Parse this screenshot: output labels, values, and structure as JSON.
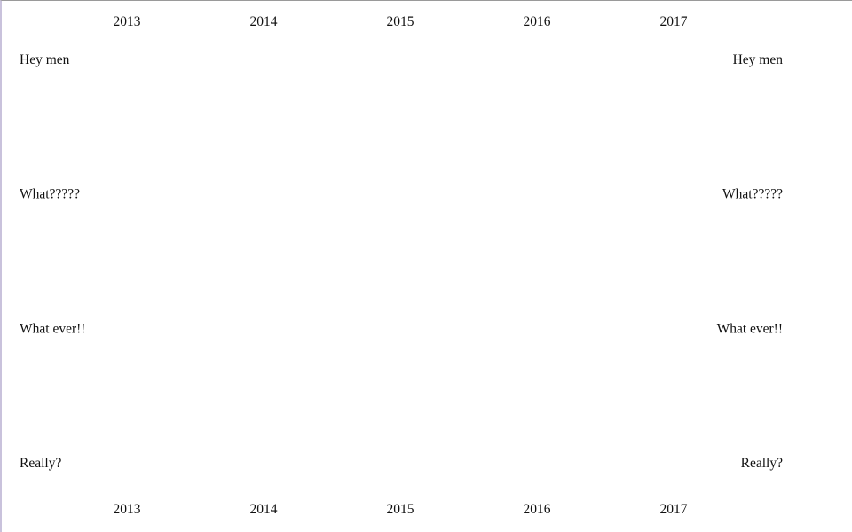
{
  "chart_data": {
    "type": "line",
    "title": "",
    "xlabel": "",
    "ylabel": "",
    "x": [
      2013,
      2014,
      2015,
      2016,
      2017
    ],
    "x_tick_labels": [
      "2013",
      "2014",
      "2015",
      "2016",
      "2017"
    ],
    "y_categories": [
      "Hey men",
      "What?????",
      "What ever!!",
      "Really?"
    ],
    "series": [],
    "grid": false,
    "legend": "none",
    "axes": {
      "x_ticks_top": true,
      "x_ticks_bottom": true,
      "y_labels_left": true,
      "y_labels_right": true
    }
  }
}
